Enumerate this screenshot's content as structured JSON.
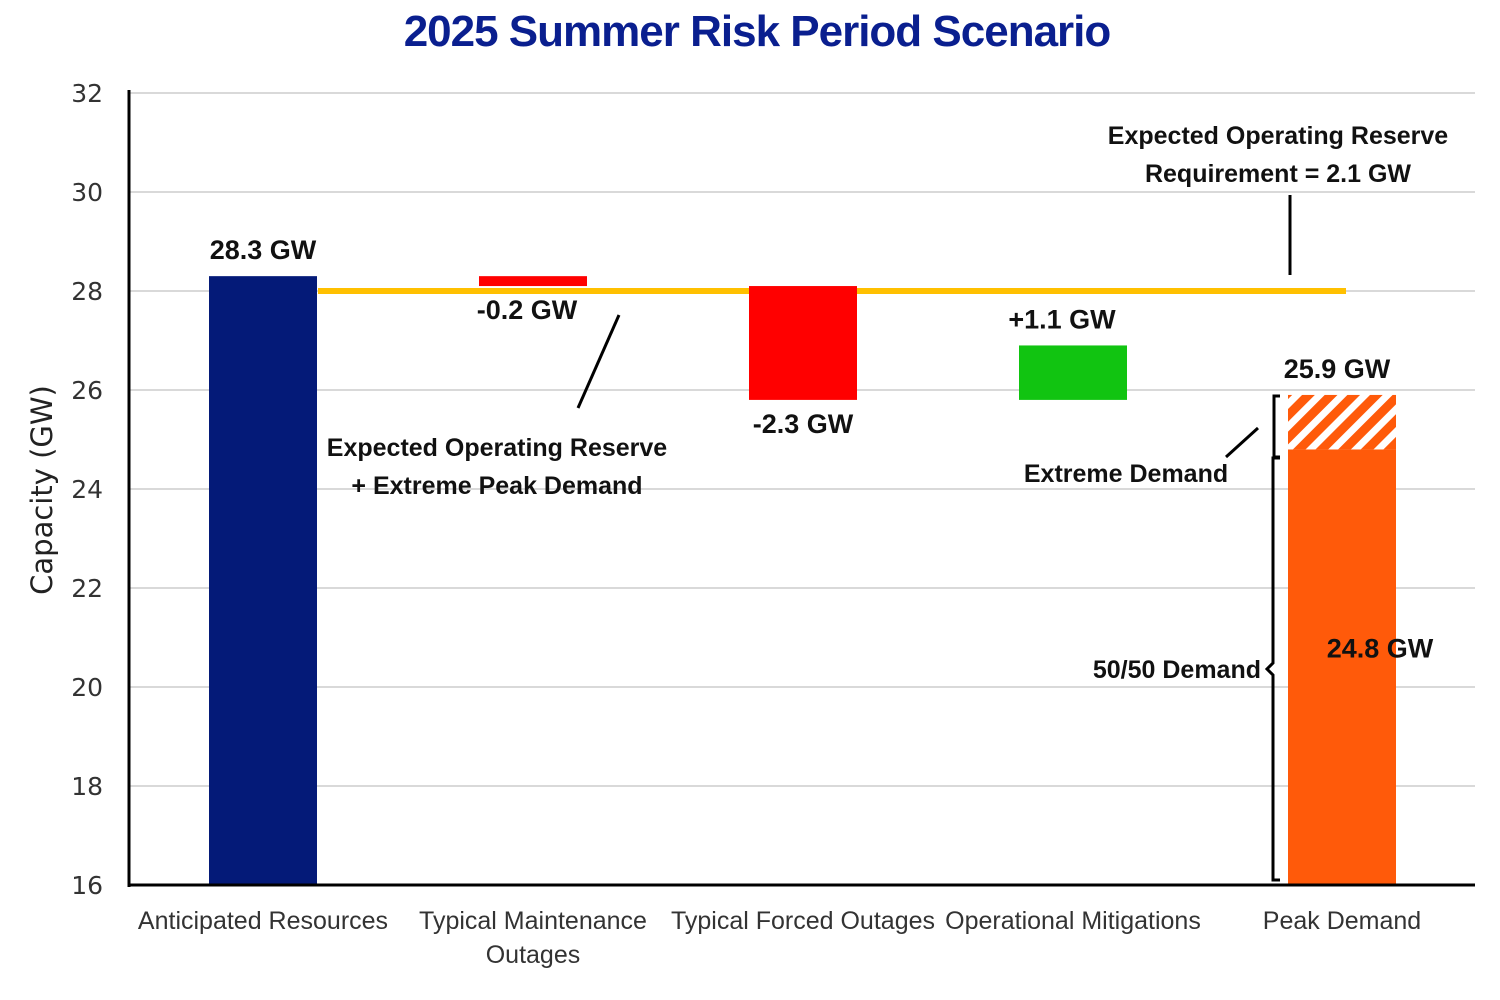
{
  "chart_data": {
    "type": "bar",
    "subtype": "waterfall",
    "title": "2025 Summer Risk Period Scenario",
    "ylabel": "Capacity (GW)",
    "xlabel": "",
    "ylim": [
      16,
      32
    ],
    "yticks": [
      16,
      18,
      20,
      22,
      24,
      26,
      28,
      30,
      32
    ],
    "grid": true,
    "categories": [
      [
        "Anticipated Resources"
      ],
      [
        "Typical Maintenance",
        "Outages"
      ],
      [
        "Typical Forced Outages"
      ],
      [
        "Operational Mitigations"
      ],
      [
        "Peak Demand"
      ]
    ],
    "bars": [
      {
        "category_index": 0,
        "base": 16,
        "top": 28.3,
        "color": "#041a78",
        "label": "28.3 GW"
      },
      {
        "category_index": 1,
        "base": 28.1,
        "top": 28.3,
        "color": "#ff0000",
        "label": "-0.2 GW"
      },
      {
        "category_index": 2,
        "base": 25.8,
        "top": 28.1,
        "color": "#ff0000",
        "label": "-2.3 GW"
      },
      {
        "category_index": 3,
        "base": 25.8,
        "top": 26.9,
        "color": "#11c411",
        "label": "+1.1 GW"
      },
      {
        "category_index": 4,
        "base": 16,
        "top": 24.8,
        "color": "#ff5a0a",
        "label": "24.8 GW"
      },
      {
        "category_index": 4,
        "base": 24.8,
        "top": 25.9,
        "color": "#ff5a0a",
        "hatched": true,
        "label": "25.9 GW"
      }
    ],
    "reference_line": {
      "value": 28.0,
      "color": "#ffc000"
    },
    "annotations": {
      "reserve_requirement": [
        "Expected Operating Reserve",
        "Requirement = 2.1 GW"
      ],
      "reserve_plus_extreme": [
        "Expected Operating Reserve",
        "+ Extreme Peak Demand"
      ],
      "extreme_demand": "Extreme Demand",
      "fifty_fifty_demand": "50/50 Demand"
    }
  }
}
